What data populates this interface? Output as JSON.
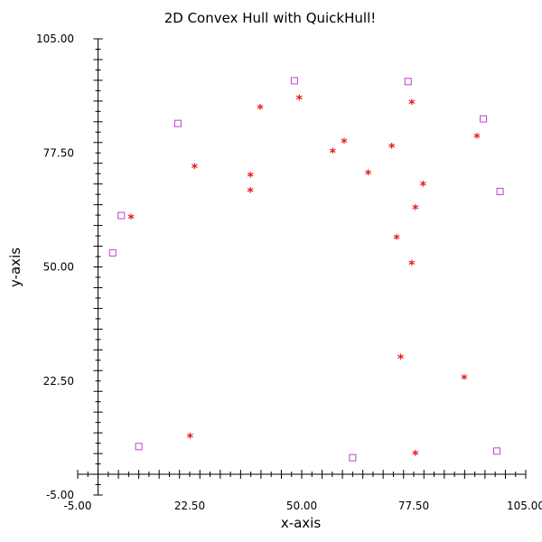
{
  "chart_data": {
    "type": "scatter",
    "title": "2D Convex Hull with QuickHull!",
    "xlabel": "x-axis",
    "ylabel": "y-axis",
    "xlim": [
      -5,
      105
    ],
    "ylim": [
      -5,
      105
    ],
    "x_ticks": [
      "-5.00",
      "22.50",
      "50.00",
      "77.50",
      "105.00"
    ],
    "y_ticks": [
      "105.00",
      "77.50",
      "50.00",
      "22.50",
      "-5.00"
    ],
    "x_tick_values": [
      -5,
      22.5,
      50,
      77.5,
      105
    ],
    "y_tick_values": [
      105,
      77.5,
      50,
      22.5,
      -5
    ],
    "grid": false,
    "x_axis_position": "y=0",
    "y_axis_position": "x=0",
    "series": [
      {
        "marker": "open-square",
        "color": "#c040d0",
        "points": [
          [
            48.2,
            94.9
          ],
          [
            76.1,
            94.7
          ],
          [
            94.6,
            85.7
          ],
          [
            98.7,
            68.2
          ],
          [
            19.6,
            84.6
          ],
          [
            5.7,
            62.4
          ],
          [
            3.6,
            53.4
          ],
          [
            10.0,
            6.7
          ],
          [
            62.5,
            4.0
          ],
          [
            97.9,
            5.6
          ]
        ]
      },
      {
        "marker": "star",
        "color": "#e8141a",
        "points": [
          [
            49.4,
            90.4
          ],
          [
            77.0,
            89.3
          ],
          [
            93.0,
            81.1
          ],
          [
            39.8,
            88.1
          ],
          [
            60.4,
            79.9
          ],
          [
            57.6,
            77.6
          ],
          [
            72.1,
            78.7
          ],
          [
            23.7,
            73.8
          ],
          [
            37.4,
            71.8
          ],
          [
            66.3,
            72.3
          ],
          [
            79.8,
            69.6
          ],
          [
            37.4,
            68.1
          ],
          [
            77.9,
            63.9
          ],
          [
            8.1,
            61.6
          ],
          [
            73.3,
            56.7
          ],
          [
            77.0,
            50.5
          ],
          [
            74.3,
            27.9
          ],
          [
            89.9,
            23.0
          ],
          [
            22.6,
            8.8
          ],
          [
            77.9,
            4.7
          ]
        ]
      }
    ]
  }
}
